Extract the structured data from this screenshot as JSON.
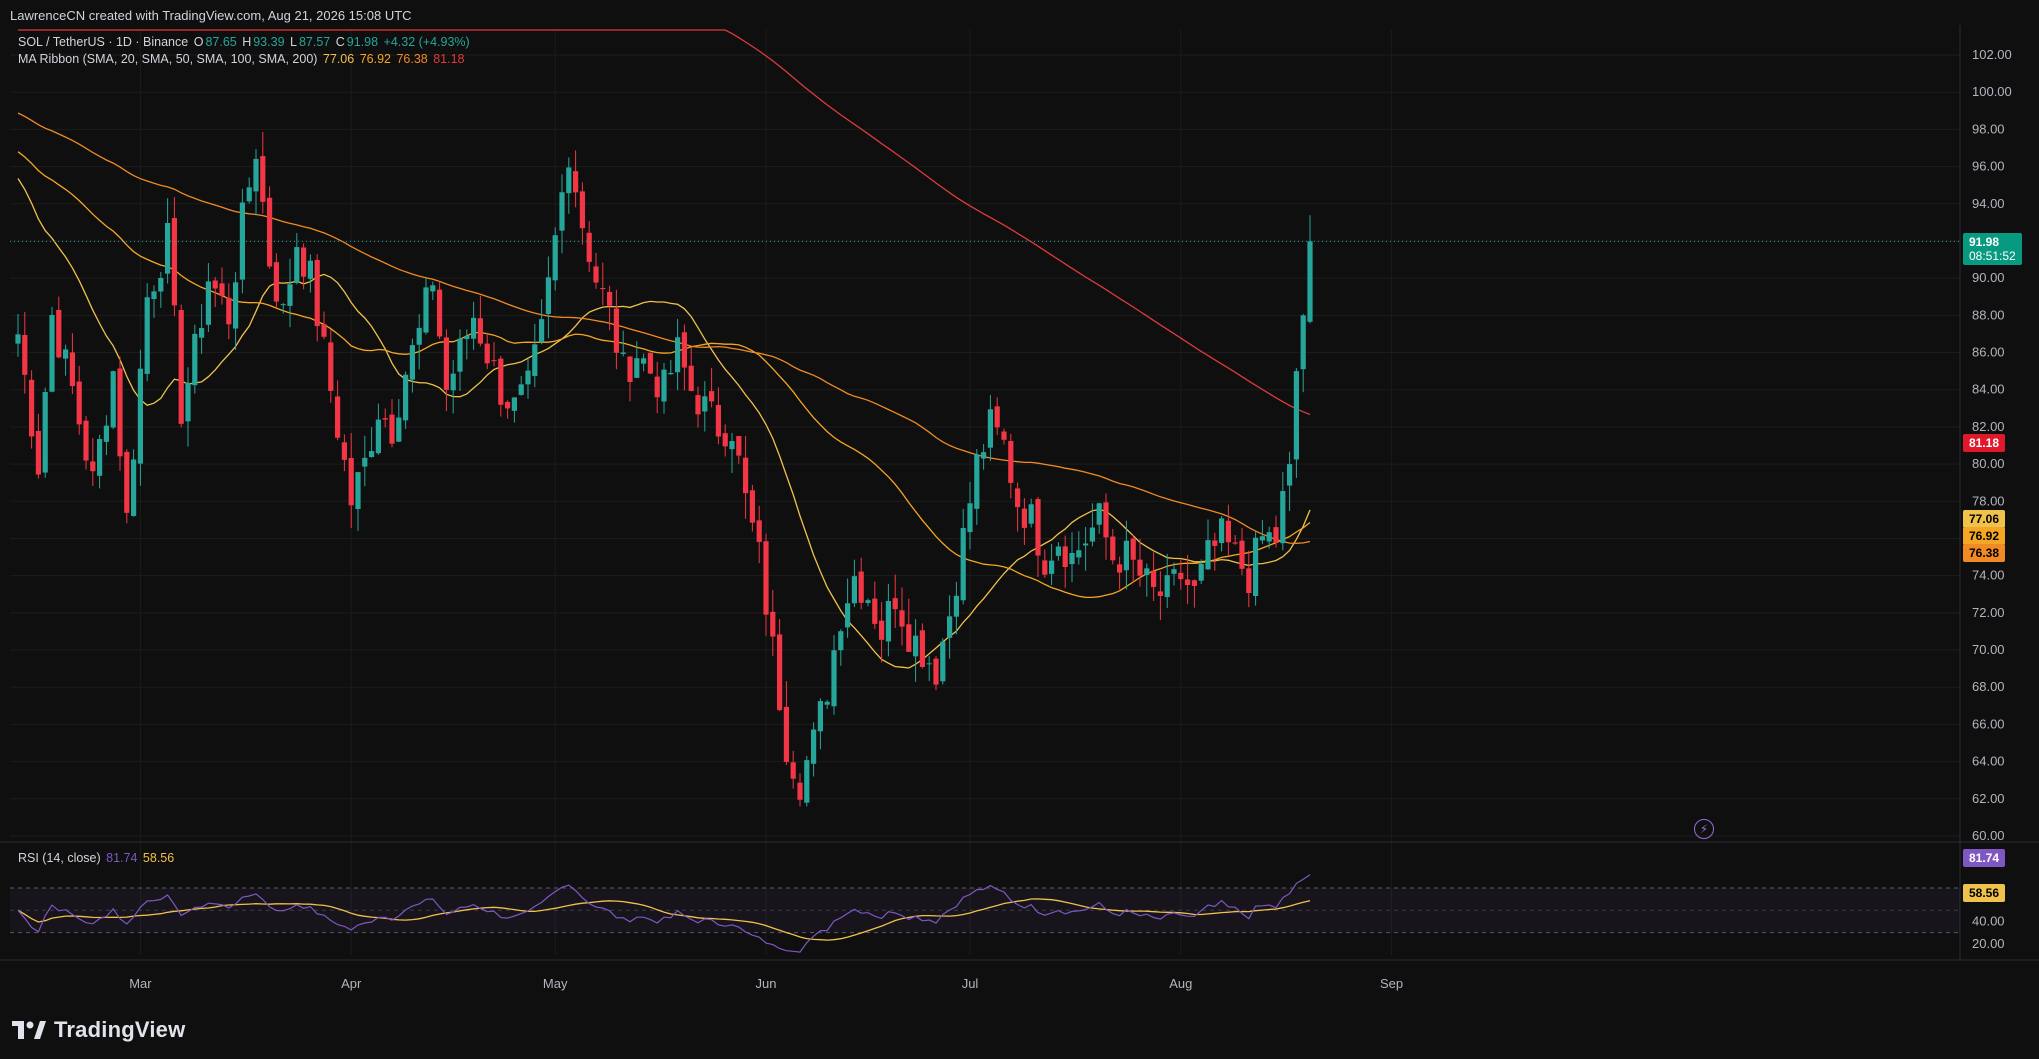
{
  "header": {
    "credit": "LawrenceCN created with TradingView.com, Aug 21, 2026 15:08 UTC"
  },
  "legend": {
    "symbol": "SOL / TetherUS · 1D · Binance",
    "o_label": "O",
    "o_value": "87.65",
    "h_label": "H",
    "h_value": "93.39",
    "l_label": "L",
    "l_value": "87.57",
    "c_label": "C",
    "c_value": "91.98",
    "change": "+4.32 (+4.93%)",
    "ma_label": "MA Ribbon (SMA, 20, SMA, 50, SMA, 100, SMA, 200)",
    "ma_values": [
      "77.06",
      "76.92",
      "76.38",
      "81.18"
    ]
  },
  "rsi_legend": {
    "label": "RSI (14, close)",
    "values": [
      "81.74",
      "58.56"
    ]
  },
  "price_tags": {
    "last": "91.98",
    "countdown": "08:51:52",
    "ma200": "81.18",
    "ma20": "77.06",
    "ma50": "76.92",
    "ma100": "76.38",
    "rsi": "81.74",
    "rsi_ma": "58.56"
  },
  "brand": {
    "name": "TradingView"
  },
  "colors": {
    "up": "#26a69a",
    "down": "#f23645",
    "ma20": "#f0c14b",
    "ma50": "#f5a623",
    "ma100": "#f08a24",
    "ma200": "#e03a3a",
    "rsi": "#7e57c2",
    "rsi_ma": "#f0c14b"
  },
  "chart_data": {
    "type": "candlestick",
    "yaxis_ticks": [
      "102.00",
      "100.00",
      "98.00",
      "96.00",
      "94.00",
      "92.00",
      "90.00",
      "88.00",
      "86.00",
      "84.00",
      "82.00",
      "80.00",
      "78.00",
      "76.00",
      "74.00",
      "72.00",
      "70.00",
      "68.00",
      "66.00",
      "64.00",
      "62.00",
      "60.00"
    ],
    "ylim": [
      60,
      103
    ],
    "x_month_labels": [
      {
        "label": "Mar",
        "index": 18
      },
      {
        "label": "Apr",
        "index": 49
      },
      {
        "label": "May",
        "index": 79
      },
      {
        "label": "Jun",
        "index": 110
      },
      {
        "label": "Jul",
        "index": 140
      },
      {
        "label": "Aug",
        "index": 171
      },
      {
        "label": "Sep",
        "index": 202
      }
    ],
    "n_days": 226,
    "rsi_ticks": [
      "40.00",
      "20.00"
    ],
    "rsi_ylim": [
      10,
      95
    ],
    "rsi_levels": [
      70,
      50,
      30
    ],
    "anchors": [
      [
        0,
        87
      ],
      [
        3,
        80
      ],
      [
        5,
        88
      ],
      [
        8,
        84
      ],
      [
        11,
        79
      ],
      [
        14,
        85
      ],
      [
        16,
        77
      ],
      [
        19,
        89
      ],
      [
        22,
        92
      ],
      [
        24,
        83
      ],
      [
        26,
        86
      ],
      [
        28,
        90
      ],
      [
        31,
        88
      ],
      [
        33,
        93
      ],
      [
        35,
        97
      ],
      [
        37,
        91
      ],
      [
        39,
        88
      ],
      [
        41,
        92
      ],
      [
        43,
        90
      ],
      [
        45,
        86
      ],
      [
        47,
        82
      ],
      [
        49,
        78
      ],
      [
        51,
        80
      ],
      [
        53,
        83
      ],
      [
        55,
        82
      ],
      [
        57,
        85
      ],
      [
        59,
        87
      ],
      [
        61,
        90
      ],
      [
        63,
        84
      ],
      [
        65,
        86
      ],
      [
        67,
        88
      ],
      [
        69,
        86
      ],
      [
        71,
        84
      ],
      [
        73,
        83
      ],
      [
        75,
        84
      ],
      [
        77,
        87
      ],
      [
        79,
        92
      ],
      [
        81,
        97
      ],
      [
        83,
        93
      ],
      [
        85,
        90
      ],
      [
        87,
        88
      ],
      [
        89,
        85
      ],
      [
        91,
        86
      ],
      [
        93,
        85
      ],
      [
        95,
        84
      ],
      [
        97,
        86
      ],
      [
        99,
        84
      ],
      [
        101,
        83
      ],
      [
        103,
        82
      ],
      [
        105,
        82
      ],
      [
        107,
        78
      ],
      [
        109,
        75
      ],
      [
        111,
        70
      ],
      [
        113,
        65
      ],
      [
        115,
        63
      ],
      [
        117,
        65
      ],
      [
        119,
        68
      ],
      [
        121,
        72
      ],
      [
        123,
        74
      ],
      [
        125,
        73
      ],
      [
        127,
        71
      ],
      [
        129,
        73
      ],
      [
        131,
        71
      ],
      [
        133,
        70
      ],
      [
        135,
        69
      ],
      [
        137,
        72
      ],
      [
        139,
        76
      ],
      [
        141,
        80
      ],
      [
        143,
        82
      ],
      [
        145,
        81
      ],
      [
        147,
        78
      ],
      [
        149,
        77
      ],
      [
        151,
        75
      ],
      [
        153,
        76
      ],
      [
        155,
        75
      ],
      [
        157,
        76
      ],
      [
        159,
        77
      ],
      [
        161,
        75
      ],
      [
        163,
        75
      ],
      [
        165,
        74
      ],
      [
        167,
        73
      ],
      [
        169,
        73
      ],
      [
        171,
        74
      ],
      [
        173,
        73
      ],
      [
        175,
        75
      ],
      [
        177,
        76
      ],
      [
        179,
        75
      ],
      [
        181,
        74
      ],
      [
        183,
        76
      ],
      [
        185,
        76
      ],
      [
        187,
        80
      ],
      [
        188,
        85
      ],
      [
        189,
        88
      ],
      [
        190,
        92
      ]
    ]
  }
}
